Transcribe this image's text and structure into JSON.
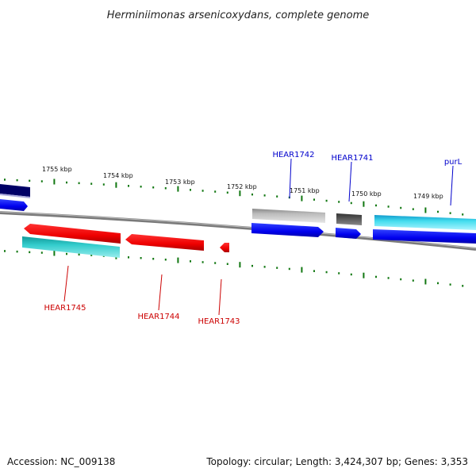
{
  "title": "Herminiimonas arsenicoxydans, complete genome",
  "accession": "Accession: NC_009138",
  "summary": "Topology: circular; Length: 3,424,307 bp; Genes: 3,353",
  "ticks": [
    "1755 kbp",
    "1754 kbp",
    "1753 kbp",
    "1752 kbp",
    "1751 kbp",
    "1750 kbp",
    "1749 kbp"
  ],
  "genes_top": [
    {
      "name": "HEAR1742",
      "color": "#0000cc"
    },
    {
      "name": "HEAR1741",
      "color": "#0000cc"
    },
    {
      "name": "purL",
      "color": "#0000cc"
    }
  ],
  "genes_bottom": [
    {
      "name": "HEAR1745",
      "color": "#cc0000"
    },
    {
      "name": "HEAR1744",
      "color": "#cc0000"
    },
    {
      "name": "HEAR1743",
      "color": "#cc0000"
    }
  ],
  "colors": {
    "forward_cds": "#0000ee",
    "reverse_cds": "#ee0000",
    "cyan_feature": "#22ccdd",
    "teal_feature": "#22bbbb",
    "grey_feature": "#b0b0b0",
    "dark_grey_feature": "#555555",
    "navy_feature": "#000066",
    "backbone": "#888888",
    "tick_color": "#117711"
  }
}
